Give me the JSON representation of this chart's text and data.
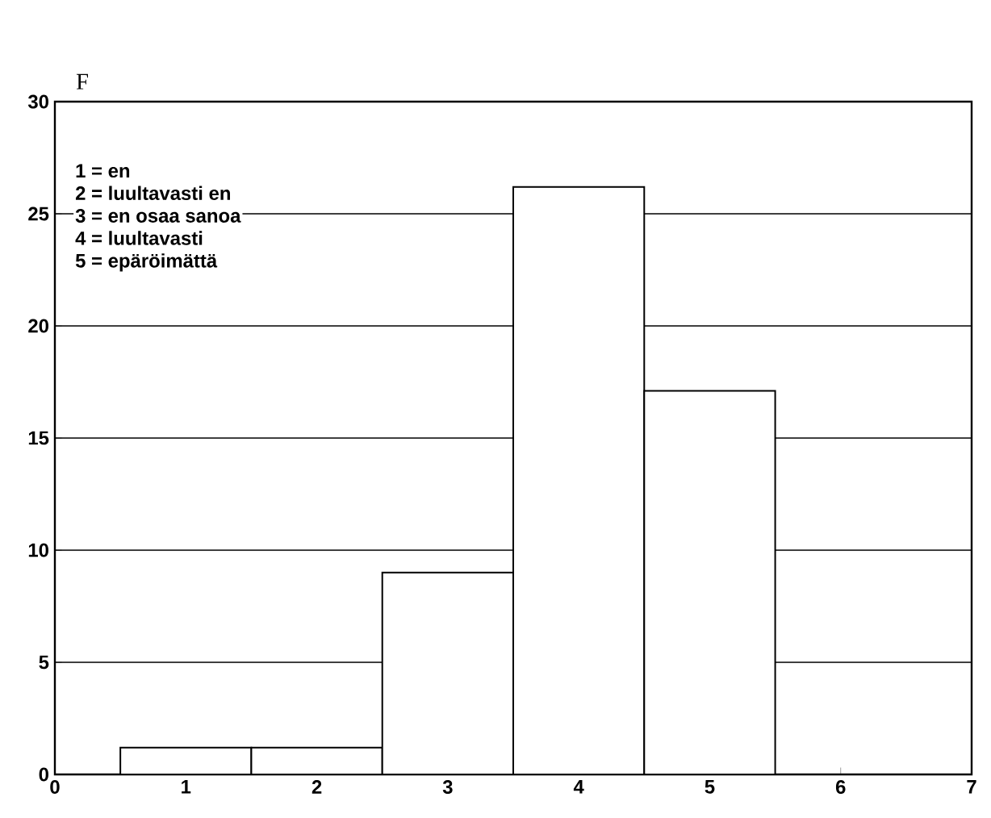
{
  "chart_data": {
    "type": "histogram",
    "ylabel": "F",
    "bins": [
      0.5,
      1.5,
      2.5,
      3.5,
      4.5,
      5.5
    ],
    "values": [
      1.2,
      1.2,
      9,
      26.2,
      17.1
    ],
    "color": "#ffffff",
    "xlim": [
      0,
      7
    ],
    "xticks": [
      0,
      1,
      2,
      3,
      4,
      5,
      6,
      7
    ],
    "ylim": [
      0,
      30
    ],
    "yticks": [
      0,
      5,
      10,
      15,
      20,
      25,
      30
    ],
    "grid": "y",
    "annotations": [
      "1 = en",
      "2 = luultavasti en",
      "3 = en osaa sanoa",
      "4 = luultavasti",
      "5 = epäröimättä"
    ]
  }
}
